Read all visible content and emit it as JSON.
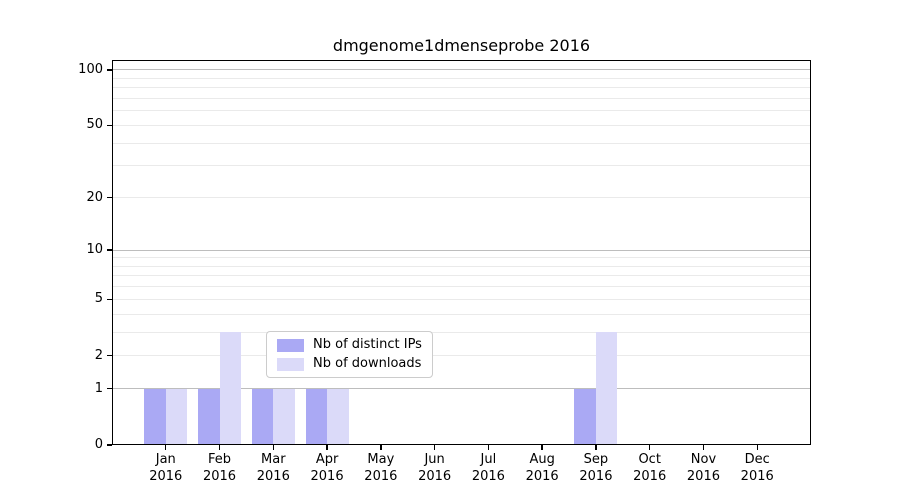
{
  "chart_data": {
    "type": "bar",
    "title": "dmgenome1dmenseprobe 2016",
    "categories": [
      "Jan 2016",
      "Feb 2016",
      "Mar 2016",
      "Apr 2016",
      "May 2016",
      "Jun 2016",
      "Jul 2016",
      "Aug 2016",
      "Sep 2016",
      "Oct 2016",
      "Nov 2016",
      "Dec 2016"
    ],
    "series": [
      {
        "name": "Nb of distinct IPs",
        "color": "#aaa9f4",
        "values": [
          1,
          1,
          1,
          1,
          0,
          0,
          0,
          0,
          1,
          0,
          0,
          0
        ]
      },
      {
        "name": "Nb of downloads",
        "color": "#dbdaf9",
        "values": [
          1,
          3,
          1,
          1,
          0,
          0,
          0,
          0,
          3,
          0,
          0,
          0
        ]
      }
    ],
    "xlabel": "",
    "ylabel": "",
    "yscale": "log1p",
    "ylim": [
      0,
      113
    ],
    "yticks": [
      0,
      1,
      2,
      5,
      10,
      20,
      50,
      100
    ],
    "grid_major": [
      1,
      10,
      100
    ],
    "grid_minor": [
      2,
      3,
      4,
      5,
      6,
      7,
      8,
      9,
      20,
      30,
      40,
      50,
      60,
      70,
      80,
      90
    ],
    "legend": {
      "position": "bottom-center"
    },
    "colors": {
      "grid_major": "#bdbdbd",
      "grid_minor": "#eaeaea",
      "axis": "#000000",
      "background": "#ffffff"
    }
  }
}
